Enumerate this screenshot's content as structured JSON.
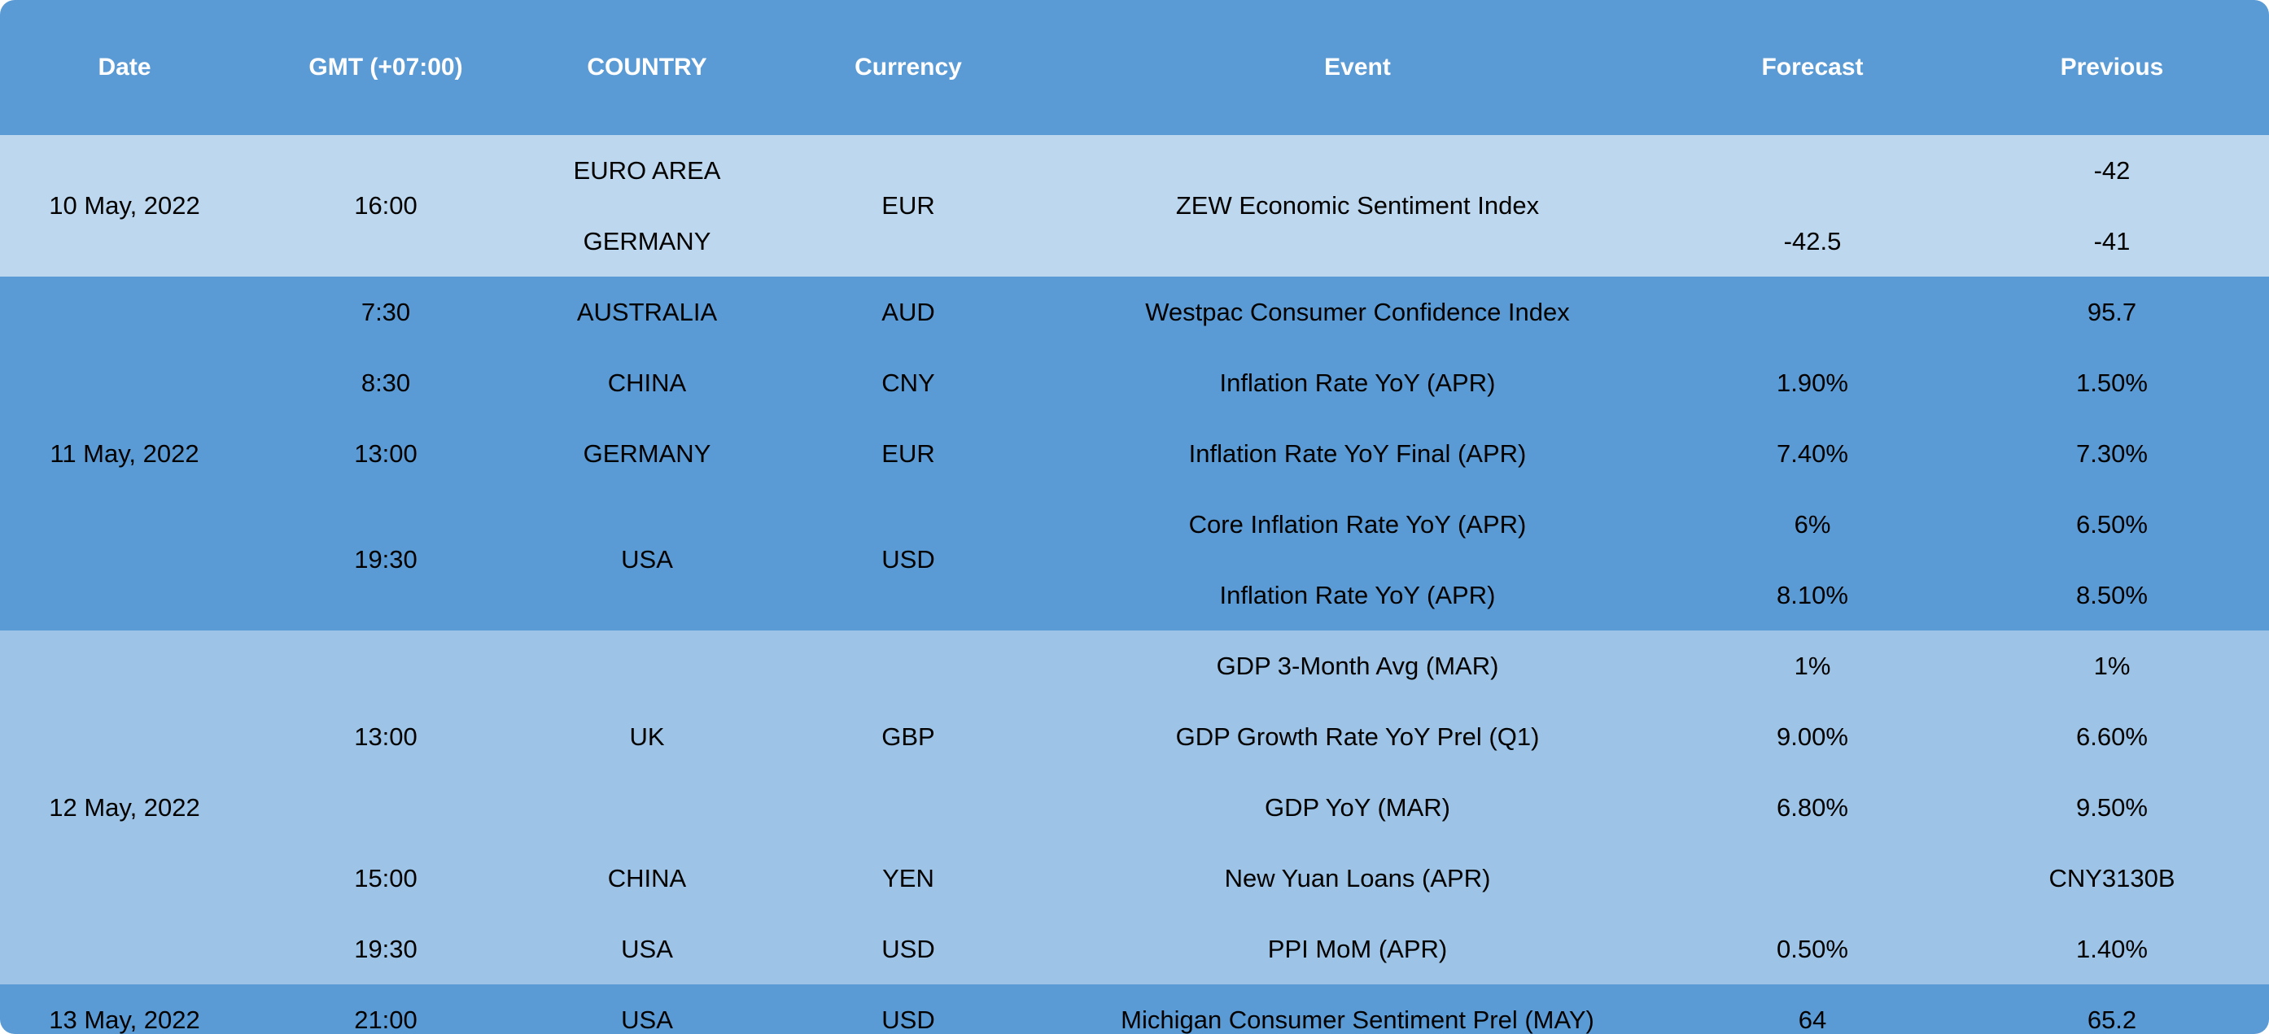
{
  "colors": {
    "header_bg": "#5b9bd5",
    "header_text": "#ffffff",
    "band_light": "#bdd7ee",
    "band_dark": "#5b9bd5",
    "band_mid": "#9dc3e6"
  },
  "header": {
    "date": "Date",
    "gmt": "GMT (+07:00)",
    "country": "COUNTRY",
    "currency": "Currency",
    "event": "Event",
    "forecast": "Forecast",
    "previous": "Previous"
  },
  "groups": [
    {
      "date": "10 May, 2022",
      "rows": [
        {
          "time": "16:00",
          "country": "EURO AREA",
          "country2": "GERMANY",
          "currency": "EUR",
          "event": "ZEW Economic Sentiment Index",
          "forecast": "",
          "forecast2": "-42.5",
          "previous": "-42",
          "previous2": "-41"
        }
      ]
    },
    {
      "date": "11 May, 2022",
      "rows": [
        {
          "time": "7:30",
          "country": "AUSTRALIA",
          "currency": "AUD",
          "event": "Westpac Consumer Confidence Index",
          "forecast": "",
          "previous": "95.7"
        },
        {
          "time": "8:30",
          "country": "CHINA",
          "currency": "CNY",
          "event": "Inflation Rate YoY (APR)",
          "forecast": "1.90%",
          "previous": "1.50%"
        },
        {
          "time": "13:00",
          "country": "GERMANY",
          "currency": "EUR",
          "event": "Inflation Rate YoY Final (APR)",
          "forecast": "7.40%",
          "previous": "7.30%"
        },
        {
          "time": "19:30",
          "country": "USA",
          "currency": "USD",
          "event": "Core Inflation Rate YoY (APR)",
          "forecast": "6%",
          "previous": "6.50%"
        },
        {
          "event": "Inflation Rate YoY (APR)",
          "forecast": "8.10%",
          "previous": "8.50%"
        }
      ]
    },
    {
      "date": "12 May, 2022",
      "rows": [
        {
          "time": "13:00",
          "country": "UK",
          "currency": "GBP",
          "event": "GDP 3-Month Avg (MAR)",
          "forecast": "1%",
          "previous": "1%"
        },
        {
          "event": "GDP Growth Rate YoY Prel (Q1)",
          "forecast": "9.00%",
          "previous": "6.60%"
        },
        {
          "event": "GDP YoY (MAR)",
          "forecast": "6.80%",
          "previous": "9.50%"
        },
        {
          "time": "15:00",
          "country": "CHINA",
          "currency": "YEN",
          "event": "New Yuan Loans (APR)",
          "forecast": "",
          "previous": "CNY3130B"
        },
        {
          "time": "19:30",
          "country": "USA",
          "currency": "USD",
          "event": "PPI MoM (APR)",
          "forecast": "0.50%",
          "previous": "1.40%"
        }
      ]
    },
    {
      "date": "13 May, 2022",
      "rows": [
        {
          "time": "21:00",
          "country": "USA",
          "currency": "USD",
          "event": "Michigan Consumer Sentiment Prel (MAY)",
          "forecast": "64",
          "previous": "65.2"
        }
      ]
    }
  ]
}
